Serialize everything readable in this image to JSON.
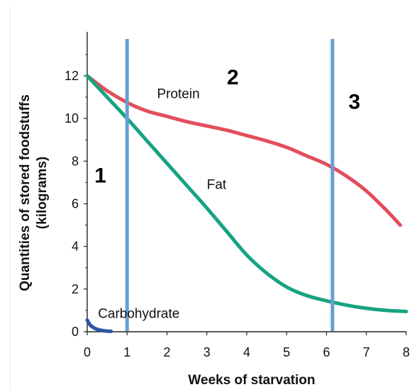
{
  "chart_data": {
    "type": "line",
    "xlabel": "Weeks of starvation",
    "ylabel": [
      "Quantities of stored foodstuffs",
      "(kilograms)"
    ],
    "xlim": [
      0,
      8
    ],
    "ylim": [
      0,
      14
    ],
    "xticks": [
      0,
      1,
      2,
      3,
      4,
      5,
      6,
      7,
      8
    ],
    "yticks": [
      0,
      2,
      4,
      6,
      8,
      10,
      12
    ],
    "grid": false,
    "series": [
      {
        "name": "Protein",
        "color": "#e34e5b",
        "x": [
          0,
          0.5,
          1,
          1.5,
          2,
          2.5,
          3,
          3.5,
          4,
          4.5,
          5,
          5.5,
          6,
          6.5,
          7,
          7.5,
          7.85
        ],
        "y": [
          12,
          11.3,
          10.75,
          10.35,
          10.1,
          9.85,
          9.65,
          9.45,
          9.2,
          8.95,
          8.65,
          8.25,
          7.85,
          7.3,
          6.6,
          5.7,
          5.0
        ]
      },
      {
        "name": "Fat",
        "color": "#16a383",
        "x": [
          0,
          0.5,
          1,
          1.5,
          2,
          2.5,
          3,
          3.5,
          4,
          4.5,
          5,
          5.5,
          6,
          6.5,
          7,
          7.5,
          8
        ],
        "y": [
          12,
          11,
          10,
          8.95,
          7.9,
          6.85,
          5.8,
          4.7,
          3.6,
          2.75,
          2.1,
          1.7,
          1.45,
          1.25,
          1.1,
          1.0,
          0.95
        ]
      },
      {
        "name": "Carbohydrate",
        "color": "#2b56a6",
        "x": [
          0,
          0.05,
          0.1,
          0.2,
          0.3,
          0.4,
          0.5,
          0.6
        ],
        "y": [
          0.55,
          0.38,
          0.27,
          0.15,
          0.09,
          0.05,
          0.03,
          0.02
        ]
      }
    ],
    "vertical_lines": {
      "x": [
        1,
        6.15
      ],
      "color": "#6a9ed0"
    },
    "phase_labels": [
      "1",
      "2",
      "3"
    ]
  }
}
